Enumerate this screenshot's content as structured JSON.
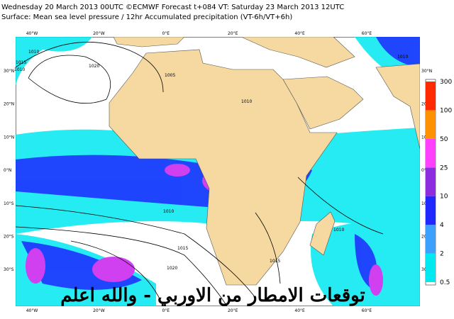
{
  "header": {
    "line1": "Wednesday 20 March 2013 00UTC ©ECMWF Forecast t+084 VT: Saturday 23 March 2013 12UTC",
    "line2": "Surface: Mean sea level pressure / 12hr Accumulated precipitation (VT-6h/VT+6h)"
  },
  "map": {
    "lon_labels": [
      "40°W",
      "20°W",
      "0°E",
      "20°E",
      "40°E",
      "60°E"
    ],
    "lat_labels": [
      "30°N",
      "20°N",
      "10°N",
      "0°N",
      "10°S",
      "20°S",
      "30°S"
    ],
    "isobar_labels": [
      "1010",
      "1015",
      "1020",
      "1005",
      "1010",
      "1010",
      "1015",
      "1020",
      "1010",
      "1015",
      "1010",
      "1010"
    ]
  },
  "colorbar": {
    "labels": [
      0.5,
      2,
      4,
      10,
      25,
      50,
      100,
      300
    ],
    "colors": [
      "#00e8f0",
      "#3ca0ff",
      "#1e28ff",
      "#8c2de0",
      "#ff40ff",
      "#ff9000",
      "#ff2a00"
    ]
  },
  "watermark": "توقعات الامطار من الاوربي - والله اعلم"
}
